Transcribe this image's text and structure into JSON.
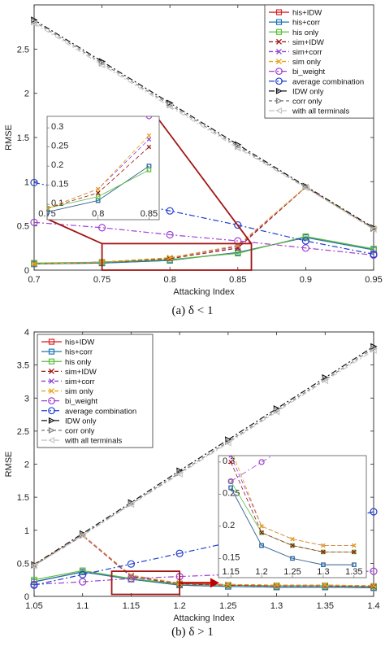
{
  "captions": {
    "top": "(a)  δ < 1",
    "bottom": "(b)  δ > 1"
  },
  "styles": [
    {
      "color": "#d62728",
      "dash": "",
      "marker": "square"
    },
    {
      "color": "#1f77b4",
      "dash": "",
      "marker": "square"
    },
    {
      "color": "#5bbf3a",
      "dash": "",
      "marker": "square"
    },
    {
      "color": "#a01010",
      "dash": "5,3",
      "marker": "x"
    },
    {
      "color": "#8b3fd6",
      "dash": "5,3",
      "marker": "x"
    },
    {
      "color": "#e8a010",
      "dash": "5,3",
      "marker": "x"
    },
    {
      "color": "#a040d0",
      "dash": "7,3,2,3",
      "marker": "circle"
    },
    {
      "color": "#1f3fd0",
      "dash": "7,3,2,3",
      "marker": "circle"
    },
    {
      "color": "#111111",
      "dash": "7,3,2,3",
      "marker": "triright"
    },
    {
      "color": "#808080",
      "dash": "4,3",
      "marker": "triright"
    },
    {
      "color": "#c8c8c8",
      "dash": "7,3,2,3",
      "marker": "trileft"
    }
  ],
  "chart_data": [
    {
      "type": "line",
      "title": "",
      "xlabel": "Attacking Index",
      "ylabel": "RMSE",
      "xlim": [
        0.7,
        0.95
      ],
      "ylim": [
        0,
        3
      ],
      "xticks": [
        0.7,
        0.75,
        0.8,
        0.85,
        0.9,
        0.95
      ],
      "xtick_labels": [
        "0.7",
        "0.75",
        "0.8",
        "0.85",
        "0.9",
        "0.95"
      ],
      "yticks": [
        0,
        0.5,
        1,
        1.5,
        2,
        2.5
      ],
      "ytick_labels": [
        "0",
        "0.5",
        "1",
        "1.5",
        "2",
        "2.5"
      ],
      "legend_position": "top-right",
      "grid": false,
      "x": [
        0.7,
        0.75,
        0.8,
        0.85,
        0.9,
        0.95
      ],
      "series": [
        {
          "name": "his+IDW",
          "values": [
            0.07,
            0.08,
            0.11,
            0.2,
            0.37,
            0.23
          ]
        },
        {
          "name": "his+corr",
          "values": [
            0.07,
            0.08,
            0.11,
            0.2,
            0.37,
            0.23
          ]
        },
        {
          "name": "his only",
          "values": [
            0.08,
            0.09,
            0.12,
            0.19,
            0.38,
            0.24
          ]
        },
        {
          "name": "sim+IDW",
          "values": [
            0.07,
            0.09,
            0.13,
            0.25,
            0.94,
            0.47
          ]
        },
        {
          "name": "sim+corr",
          "values": [
            0.07,
            0.09,
            0.14,
            0.27,
            0.94,
            0.47
          ]
        },
        {
          "name": "sim only",
          "values": [
            0.07,
            0.09,
            0.14,
            0.28,
            0.94,
            0.47
          ]
        },
        {
          "name": "bi_weight",
          "values": [
            0.54,
            0.48,
            0.4,
            0.33,
            0.25,
            0.17
          ]
        },
        {
          "name": "average combination",
          "values": [
            0.99,
            0.83,
            0.67,
            0.51,
            0.33,
            0.18
          ]
        },
        {
          "name": "IDW only",
          "values": [
            2.83,
            2.36,
            1.89,
            1.42,
            0.95,
            0.48
          ]
        },
        {
          "name": "corr only",
          "values": [
            2.81,
            2.34,
            1.87,
            1.4,
            0.94,
            0.47
          ]
        },
        {
          "name": "with all terminals",
          "values": [
            2.79,
            2.32,
            1.85,
            1.38,
            0.93,
            0.46
          ]
        }
      ],
      "zoom_rect": {
        "x": [
          0.75,
          0.86
        ],
        "y": [
          0.0,
          0.3
        ]
      },
      "inset": {
        "xlim": [
          0.75,
          0.86
        ],
        "ylim": [
          0.06,
          0.33
        ],
        "x": [
          0.75,
          0.8,
          0.85
        ],
        "yticks": [
          0.1,
          0.15,
          0.2,
          0.25,
          0.3
        ],
        "ytick_labels": [
          "0.1",
          "0.15",
          "0.2",
          "0.25",
          "0.3"
        ],
        "xticks": [
          0.75,
          0.8,
          0.85
        ],
        "xtick_labels": [
          "0.75",
          "0.8",
          "0.85"
        ]
      }
    },
    {
      "type": "line",
      "title": "",
      "xlabel": "Attacking Index",
      "ylabel": "RMSE",
      "xlim": [
        1.05,
        1.4
      ],
      "ylim": [
        0,
        4
      ],
      "xticks": [
        1.05,
        1.1,
        1.15,
        1.2,
        1.25,
        1.3,
        1.35,
        1.4
      ],
      "xtick_labels": [
        "1.05",
        "1.1",
        "1.15",
        "1.2",
        "1.25",
        "1.3",
        "1.35",
        "1.4"
      ],
      "yticks": [
        0,
        0.5,
        1,
        1.5,
        2,
        2.5,
        3,
        3.5,
        4
      ],
      "ytick_labels": [
        "0",
        "0.5",
        "1",
        "1.5",
        "2",
        "2.5",
        "3",
        "3.5",
        "4"
      ],
      "legend_position": "top-left",
      "grid": false,
      "x": [
        1.05,
        1.1,
        1.15,
        1.2,
        1.25,
        1.3,
        1.35,
        1.4
      ],
      "series": [
        {
          "name": "his+IDW",
          "values": [
            0.22,
            0.37,
            0.26,
            0.17,
            0.15,
            0.14,
            0.14,
            0.13
          ]
        },
        {
          "name": "his+corr",
          "values": [
            0.22,
            0.37,
            0.26,
            0.17,
            0.15,
            0.14,
            0.14,
            0.13
          ]
        },
        {
          "name": "his only",
          "values": [
            0.25,
            0.39,
            0.27,
            0.19,
            0.17,
            0.16,
            0.16,
            0.15
          ]
        },
        {
          "name": "sim+IDW",
          "values": [
            0.47,
            0.92,
            0.3,
            0.19,
            0.17,
            0.16,
            0.16,
            0.15
          ]
        },
        {
          "name": "sim+corr",
          "values": [
            0.47,
            0.92,
            0.31,
            0.2,
            0.18,
            0.17,
            0.17,
            0.16
          ]
        },
        {
          "name": "sim only",
          "values": [
            0.48,
            0.93,
            0.32,
            0.2,
            0.18,
            0.17,
            0.17,
            0.16
          ]
        },
        {
          "name": "bi_weight",
          "values": [
            0.18,
            0.22,
            0.27,
            0.3,
            0.33,
            0.35,
            0.37,
            0.38
          ]
        },
        {
          "name": "average combination",
          "values": [
            0.17,
            0.33,
            0.49,
            0.65,
            0.81,
            0.97,
            1.12,
            1.28
          ]
        },
        {
          "name": "IDW only",
          "values": [
            0.48,
            0.95,
            1.42,
            1.9,
            2.37,
            2.84,
            3.31,
            3.78
          ]
        },
        {
          "name": "corr only",
          "values": [
            0.47,
            0.93,
            1.4,
            1.87,
            2.34,
            2.81,
            3.28,
            3.75
          ]
        },
        {
          "name": "with all terminals",
          "values": [
            0.46,
            0.92,
            1.39,
            1.85,
            2.32,
            2.79,
            3.26,
            3.72
          ]
        }
      ],
      "zoom_rect": {
        "x": [
          1.13,
          1.2
        ],
        "y": [
          0.03,
          0.38
        ]
      },
      "inset": {
        "xlim": [
          1.13,
          1.37
        ],
        "ylim": [
          0.12,
          0.31
        ],
        "x": [
          1.15,
          1.2,
          1.25,
          1.3,
          1.35
        ],
        "yticks": [
          0.15,
          0.2,
          0.25,
          0.3
        ],
        "ytick_labels": [
          "0.15",
          "0.2",
          "0.25",
          "0.3"
        ],
        "xticks": [
          1.15,
          1.2,
          1.25,
          1.3,
          1.35
        ],
        "xtick_labels": [
          "1.15",
          "1.2",
          "1.25",
          "1.3",
          "1.35"
        ]
      }
    }
  ]
}
